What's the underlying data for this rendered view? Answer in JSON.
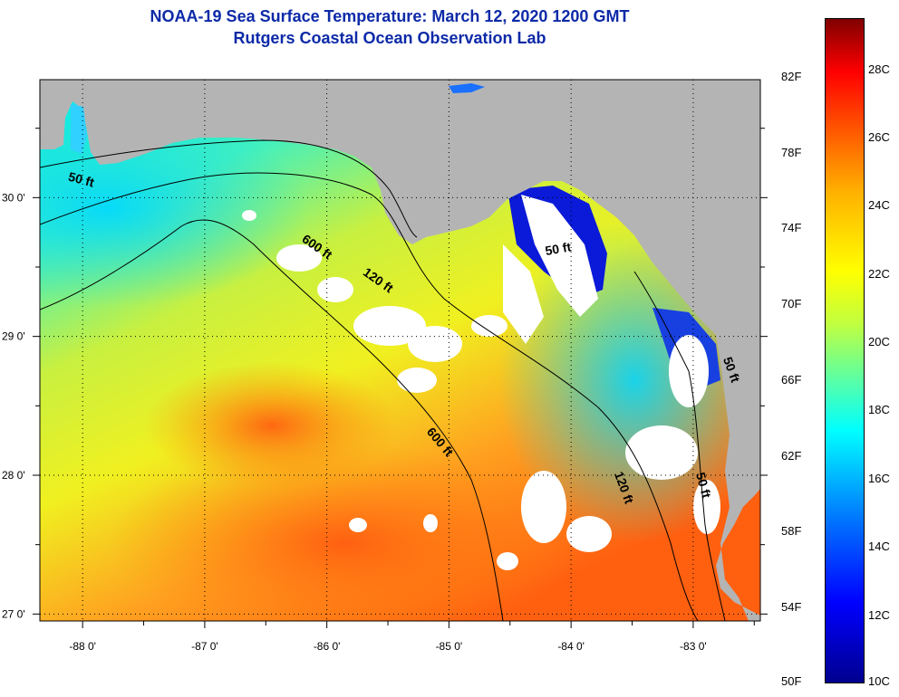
{
  "title": {
    "line1": "NOAA-19 Sea Surface Temperature:  March 12, 2020 1200 GMT",
    "line2": "Rutgers Coastal Ocean Observation Lab"
  },
  "map": {
    "lon_range": [
      -88.35,
      -82.45
    ],
    "lat_range": [
      26.95,
      30.85
    ],
    "x_ticks": [
      {
        "value": -88,
        "label": "-88 0'"
      },
      {
        "value": -87,
        "label": "-87 0'"
      },
      {
        "value": -86,
        "label": "-86 0'"
      },
      {
        "value": -85,
        "label": "-85 0'"
      },
      {
        "value": -84,
        "label": "-84 0'"
      },
      {
        "value": -83,
        "label": "-83 0'"
      }
    ],
    "y_ticks": [
      {
        "value": 30,
        "label": "30 0'"
      },
      {
        "value": 29,
        "label": "29 0'"
      },
      {
        "value": 28,
        "label": "28 0'"
      },
      {
        "value": 27,
        "label": "27 0'"
      }
    ],
    "contour_labels": [
      {
        "text": "50 ft",
        "lon": -88.02,
        "lat": 30.1,
        "angle": 15
      },
      {
        "text": "600 ft",
        "lon": -86.1,
        "lat": 29.62,
        "angle": 35
      },
      {
        "text": "120 ft",
        "lon": -85.6,
        "lat": 29.38,
        "angle": 35
      },
      {
        "text": "50 ft",
        "lon": -84.1,
        "lat": 29.6,
        "angle": -10
      },
      {
        "text": "600 ft",
        "lon": -85.1,
        "lat": 28.22,
        "angle": 50
      },
      {
        "text": "120 ft",
        "lon": -83.6,
        "lat": 27.9,
        "angle": 70
      },
      {
        "text": "50 ft",
        "lon": -82.95,
        "lat": 27.92,
        "angle": 75
      },
      {
        "text": "50 ft",
        "lon": -82.72,
        "lat": 28.75,
        "angle": 70
      }
    ],
    "colors": {
      "land": "#b4b4b4",
      "cloud": "#ffffff",
      "grid": "#000000"
    }
  },
  "colorbar": {
    "fahrenheit": [
      "82F",
      "78F",
      "74F",
      "70F",
      "66F",
      "62F",
      "58F",
      "54F",
      "50F"
    ],
    "celsius": [
      "28C",
      "26C",
      "24C",
      "22C",
      "20C",
      "18C",
      "16C",
      "14C",
      "12C",
      "10C"
    ],
    "range_c": [
      10,
      29.5
    ]
  }
}
